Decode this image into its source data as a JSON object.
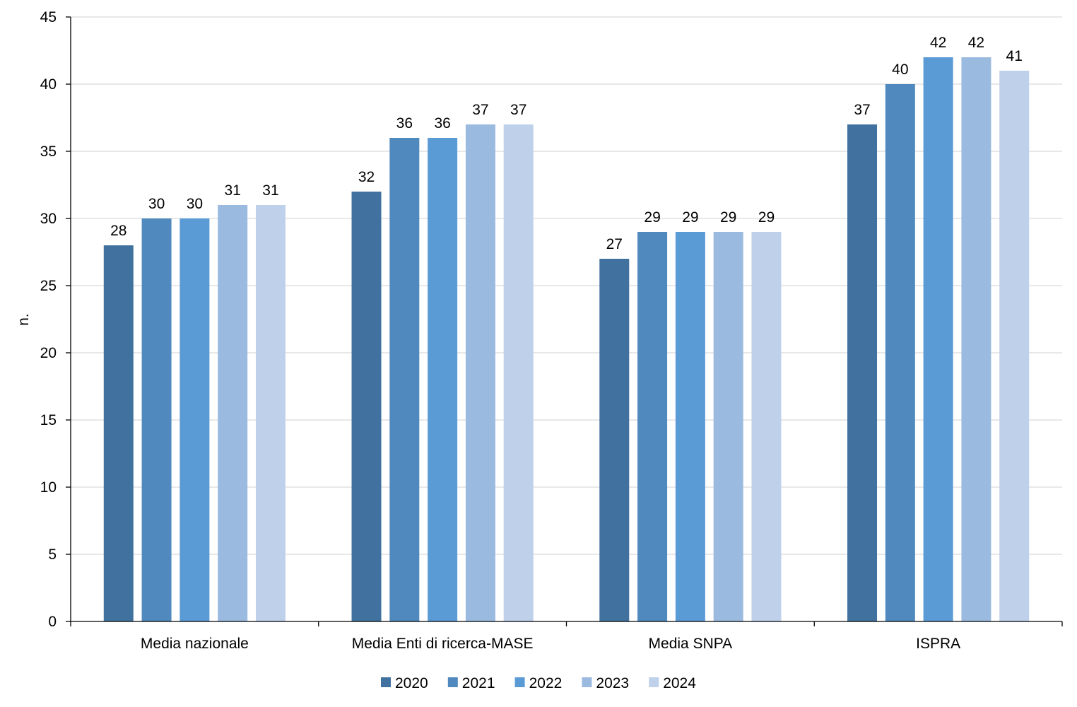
{
  "chart_data": {
    "type": "bar",
    "ylabel": "n.",
    "ylim": [
      0,
      45
    ],
    "ytick_step": 5,
    "grid": true,
    "legend_position": "bottom",
    "categories": [
      "Media nazionale",
      "Media Enti di ricerca-MASE",
      "Media SNPA",
      "ISPRA"
    ],
    "series": [
      {
        "name": "2020",
        "color": "#41729F",
        "values": [
          28,
          32,
          27,
          37
        ]
      },
      {
        "name": "2021",
        "color": "#4F89BD",
        "values": [
          30,
          36,
          29,
          40
        ]
      },
      {
        "name": "2022",
        "color": "#5B9BD5",
        "values": [
          30,
          36,
          29,
          42
        ]
      },
      {
        "name": "2023",
        "color": "#9BBAE0",
        "values": [
          31,
          37,
          29,
          42
        ]
      },
      {
        "name": "2024",
        "color": "#BFD1EA",
        "values": [
          31,
          37,
          29,
          41
        ]
      }
    ]
  }
}
